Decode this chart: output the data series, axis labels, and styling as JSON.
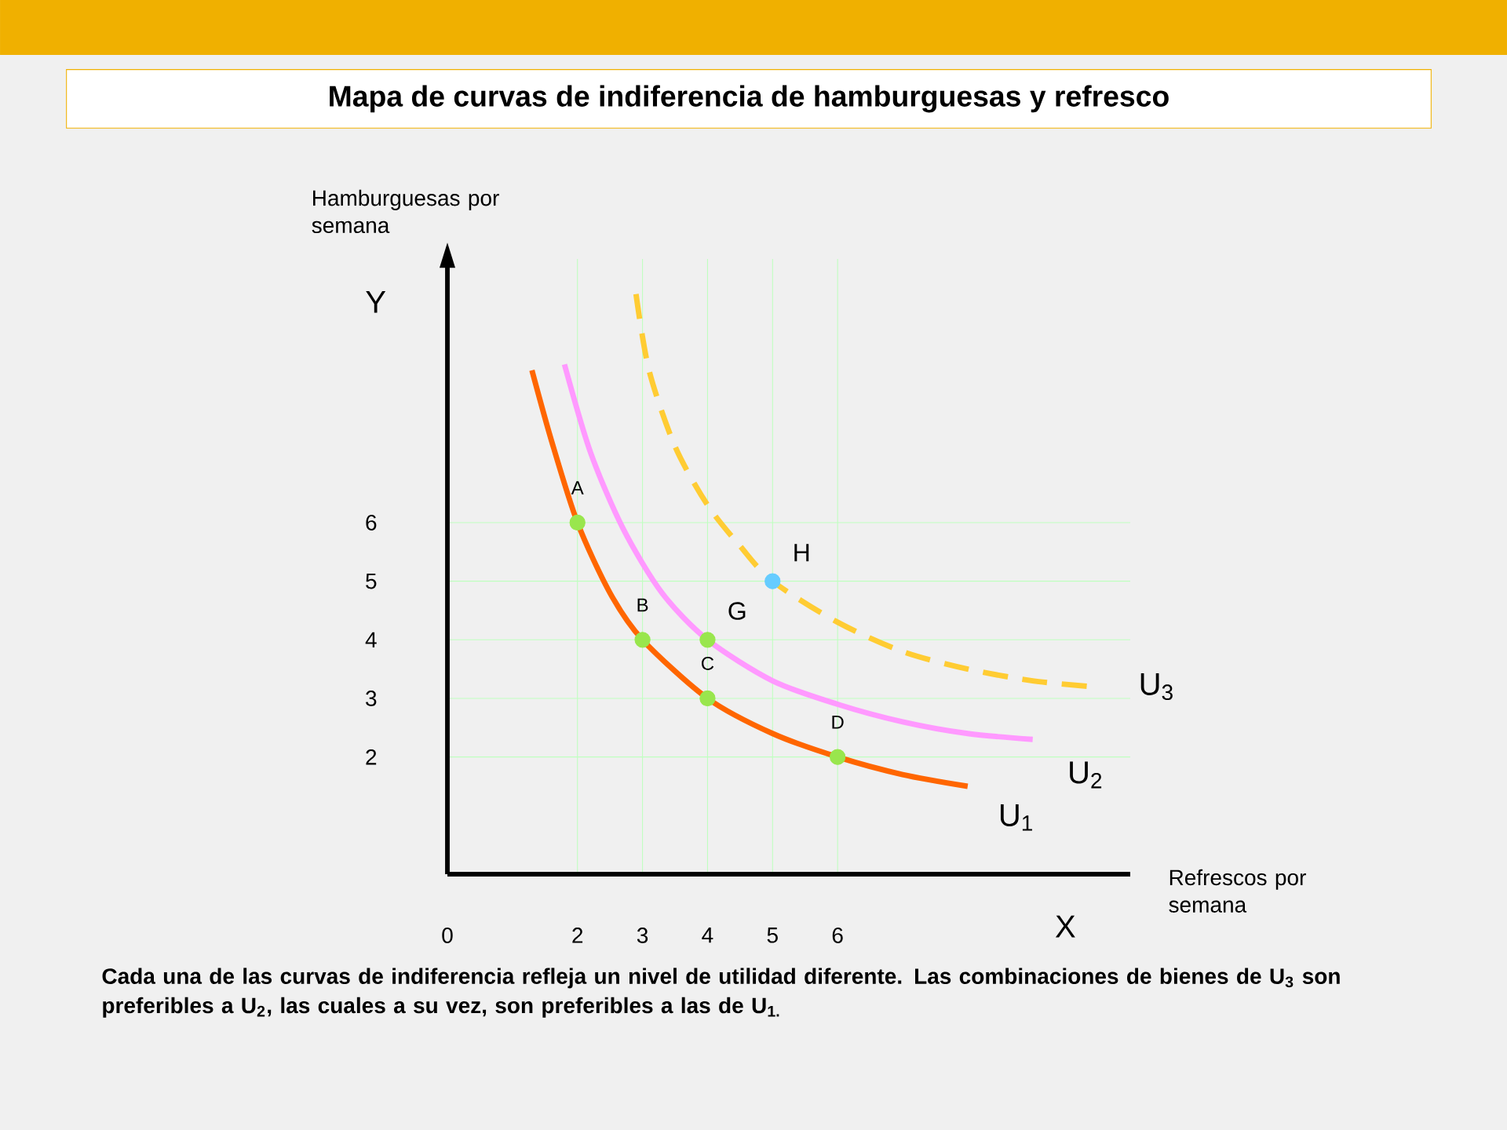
{
  "chart_data": {
    "type": "line",
    "title": "Mapa de curvas de indiferencia de hamburguesas y refresco",
    "xlabel": "Refrescos por semana",
    "ylabel": "Hamburguesas por semana",
    "xlim": [
      0,
      10.5
    ],
    "ylim": [
      0,
      10.5
    ],
    "xticks": [
      0,
      2,
      3,
      4,
      5,
      6
    ],
    "yticks": [
      2,
      3,
      4,
      5,
      6
    ],
    "grid": true,
    "series": [
      {
        "name": "U$_{1}$",
        "color": "#ff6600",
        "x": [
          1.3,
          1.6,
          2,
          2.5,
          3,
          4,
          5,
          6,
          7,
          8
        ],
        "values": [
          8.6,
          7.4,
          6,
          4.8,
          4,
          3,
          2.4,
          2,
          1.7,
          1.5
        ]
      },
      {
        "name": "U$_{2}$",
        "color": "#ff99ff",
        "x": [
          1.8,
          2.2,
          2.7,
          3.3,
          4,
          5,
          6,
          7,
          8,
          9
        ],
        "values": [
          8.7,
          7.2,
          5.9,
          4.8,
          4,
          3.3,
          2.9,
          2.6,
          2.4,
          2.3
        ]
      },
      {
        "name": "U$_{3}$",
        "color": "#ffcc33",
        "line_style": "dashed",
        "x": [
          2.9,
          3.1,
          3.5,
          4,
          4.5,
          5,
          6,
          7,
          8,
          9,
          9.9
        ],
        "values": [
          9.9,
          8.6,
          7.3,
          6.3,
          5.6,
          5,
          4.3,
          3.8,
          3.5,
          3.3,
          3.2
        ]
      },
      {
        "type": "scatter",
        "marker": "circle",
        "color": "#99e64d",
        "x": [
          2,
          3,
          4,
          4,
          6
        ],
        "values": [
          6,
          4,
          3,
          4,
          2
        ]
      },
      {
        "type": "scatter",
        "marker": "circle",
        "color": "#66ccff",
        "x": [
          5
        ],
        "values": [
          5
        ]
      }
    ],
    "annotations": [
      {
        "text": "A",
        "x": 2,
        "y": 6
      },
      {
        "text": "B",
        "x": 3,
        "y": 4
      },
      {
        "text": "C",
        "x": 4,
        "y": 3
      },
      {
        "text": "D",
        "x": 6,
        "y": 2
      },
      {
        "text": "G",
        "x": 4,
        "y": 4
      },
      {
        "text": "H",
        "x": 5,
        "y": 5
      },
      "Y",
      "X",
      "Cada una de las curvas de indiferencia refleja un nivel de utilidad diferente. Las combinaciones de bienes de U$_{3}$ son preferibles a U$_{2}$, las cuales a su vez, son preferibles a las de U$_{1.}$"
    ]
  }
}
